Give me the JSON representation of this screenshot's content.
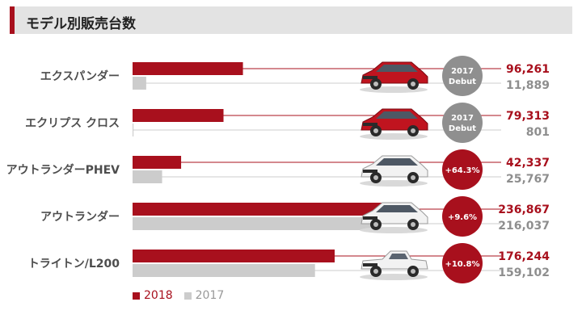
{
  "page_title": "モデル別販売台数",
  "colors": {
    "accent": "#a8101d",
    "y2017": "#cccccc",
    "y2017_text": "#8e8e8e",
    "badge_grey": "#8f8f8f"
  },
  "chart_data": {
    "type": "bar",
    "orientation": "horizontal",
    "title": "モデル別販売台数",
    "categories": [
      "エクスパンダー",
      "エクリプス クロス",
      "アウトランダーPHEV",
      "アウトランダー",
      "トライトン/L200"
    ],
    "series": [
      {
        "name": "2018",
        "values": [
          96261,
          79313,
          42337,
          236867,
          176244
        ],
        "labels": [
          "96,261",
          "79,313",
          "42,337",
          "236,867",
          "176,244"
        ],
        "color": "#a8101d"
      },
      {
        "name": "2017",
        "values": [
          11889,
          801,
          25767,
          216037,
          159102
        ],
        "labels": [
          "11,889",
          "801",
          "25,767",
          "216,037",
          "159,102"
        ],
        "color": "#cccccc"
      }
    ],
    "badges": [
      {
        "lines": [
          "2017",
          "Debut"
        ],
        "style": "grey"
      },
      {
        "lines": [
          "2017",
          "Debut"
        ],
        "style": "grey"
      },
      {
        "lines": [
          "+64.3%"
        ],
        "style": "red"
      },
      {
        "lines": [
          "+9.6%"
        ],
        "style": "red"
      },
      {
        "lines": [
          "+10.8%"
        ],
        "style": "red"
      }
    ],
    "car_icons": [
      "suv-red-icon",
      "crossover-red-icon",
      "suv-white-icon",
      "suv-white-icon",
      "pickup-white-icon"
    ],
    "legend": {
      "entries": [
        "2018",
        "2017"
      ],
      "placement": "bottom-left"
    },
    "xlabel": "",
    "ylabel": "",
    "grid": false
  }
}
